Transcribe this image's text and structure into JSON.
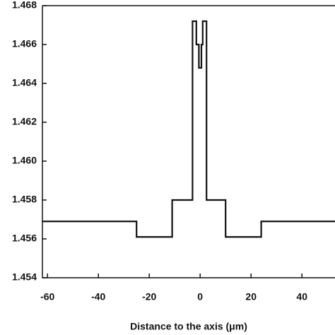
{
  "chart_data": {
    "type": "line",
    "x_label": "Distance to the axis (μm)",
    "x": [
      -62,
      -25,
      -25,
      -11,
      -11,
      -3,
      -3,
      -1.5,
      -1.5,
      -0.5,
      -0.5,
      0.5,
      0.5,
      1,
      1,
      2.5,
      2.5,
      10,
      10,
      24,
      24,
      53
    ],
    "series": [
      {
        "color": "#111111",
        "values": [
          1.4569,
          1.4569,
          1.4561,
          1.4561,
          1.458,
          1.458,
          1.4672,
          1.4672,
          1.466,
          1.466,
          1.4648,
          1.4648,
          1.466,
          1.466,
          1.4672,
          1.4672,
          1.458,
          1.458,
          1.4561,
          1.4561,
          1.4569,
          1.4569
        ]
      }
    ],
    "xlim": [
      -62,
      53
    ],
    "xticks": [
      -60,
      -40,
      -20,
      0,
      20,
      40
    ],
    "ylim": [
      1.454,
      1.468
    ],
    "yticks": [
      1.454,
      1.456,
      1.458,
      {
        "value": 1.46,
        "label": "1.460"
      },
      1.462,
      1.464,
      1.466,
      1.468
    ]
  }
}
